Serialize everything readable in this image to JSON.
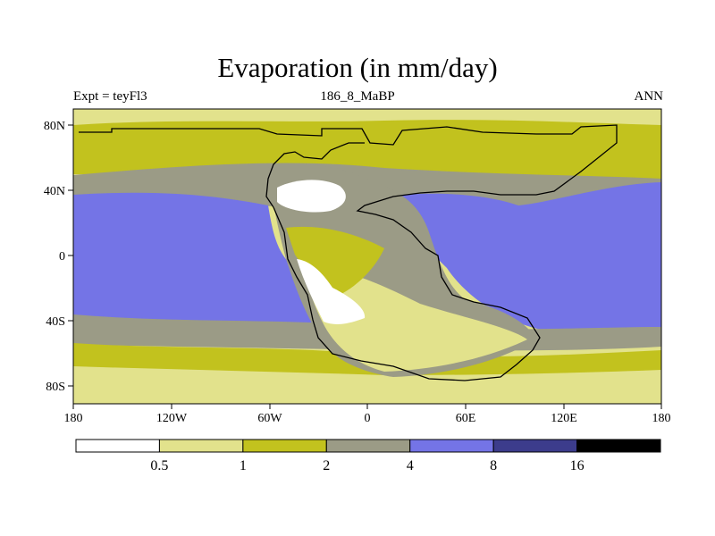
{
  "header": {
    "title": "Evaporation (in mm/day)",
    "left": "Expt = teyFl3",
    "center": "186_8_MaBP",
    "right": "ANN"
  },
  "axes": {
    "x_ticks": [
      "180",
      "120W",
      "60W",
      "0",
      "60E",
      "120E",
      "180"
    ],
    "y_ticks": [
      "80N",
      "40N",
      "0",
      "40S",
      "80S"
    ]
  },
  "colorbar": {
    "levels": [
      "0.5",
      "1",
      "2",
      "4",
      "8",
      "16"
    ],
    "colors": [
      "#ffffff",
      "#e2e28c",
      "#c2c21e",
      "#9b9b86",
      "#7474e6",
      "#3c3c8c",
      "#000000"
    ]
  },
  "palette": {
    "white": "#ffffff",
    "pale_yellow": "#e2e28c",
    "olive": "#c2c21e",
    "gray": "#9b9b86",
    "blue": "#7474e6"
  }
}
